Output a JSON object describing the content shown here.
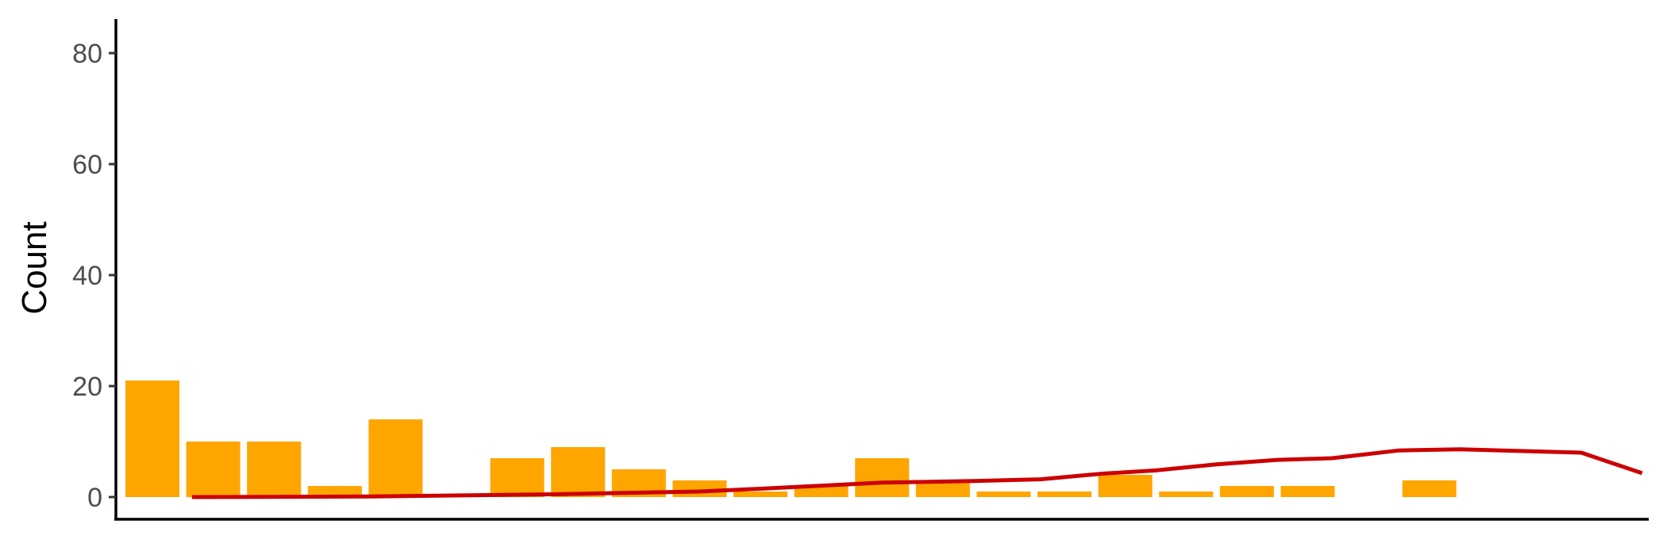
{
  "chart_data": {
    "type": "bar",
    "title": "",
    "xlabel": "",
    "ylabel": "Count",
    "ylim": [
      0,
      85
    ],
    "yticks": [
      0,
      20,
      40,
      60,
      80
    ],
    "grid": false,
    "legend": "none",
    "bar_color": "#FFA500",
    "line_color": "#CC0000",
    "bars": {
      "name": "",
      "x": [
        1,
        2,
        3,
        4,
        5,
        6,
        7,
        8,
        9,
        10,
        11,
        12,
        13,
        14,
        15,
        16,
        17,
        18,
        19,
        20,
        21,
        22,
        23,
        24,
        25
      ],
      "values": [
        21,
        10,
        10,
        2,
        14,
        0,
        7,
        9,
        5,
        3,
        1,
        2,
        7,
        3,
        1,
        1,
        4,
        1,
        2,
        2,
        0,
        3,
        0,
        0,
        0
      ]
    },
    "line": {
      "name": "",
      "x": [
        1.65,
        4.6,
        7.6,
        10,
        11,
        13,
        14.5,
        15.6,
        16.6,
        17.5,
        18.5,
        19.5,
        20.4,
        21.5,
        22.5,
        23.5,
        24.5,
        25.5
      ],
      "values": [
        0,
        0.1,
        0.5,
        1.0,
        1.5,
        2.6,
        2.9,
        3.2,
        4.2,
        4.8,
        5.9,
        6.7,
        7.0,
        8.4,
        8.6,
        8.3,
        8.0,
        4.3
      ]
    }
  }
}
